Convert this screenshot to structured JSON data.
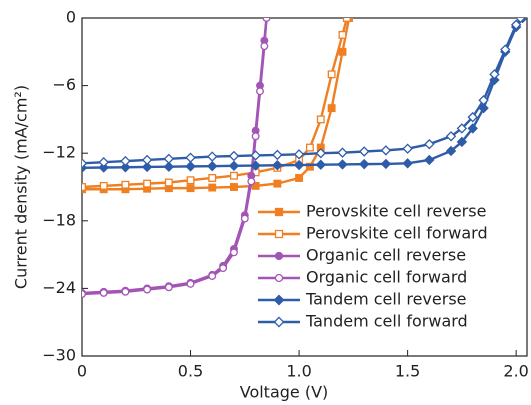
{
  "chart_data": {
    "type": "line",
    "xlabel": "Voltage (V)",
    "ylabel": "Current density (mA/cm²)",
    "xlim": [
      0,
      2.05
    ],
    "ylim": [
      -30,
      0
    ],
    "xticks": [
      0,
      0.5,
      {
        "value": 1,
        "label": "1.0"
      },
      1.5,
      {
        "value": 2,
        "label": "2.0"
      }
    ],
    "yticks": [
      {
        "value": -30,
        "label": "−30"
      },
      {
        "value": -24,
        "label": "−24"
      },
      {
        "value": -18,
        "label": "−18"
      },
      {
        "value": -12,
        "label": "−12"
      },
      {
        "value": -6,
        "label": "−6"
      },
      0
    ],
    "legend": "lower right",
    "series": [
      {
        "name": "Perovskite cell reverse",
        "color": "#f07f22",
        "marker": "square",
        "filled": true,
        "x": [
          0,
          0.1,
          0.2,
          0.3,
          0.4,
          0.5,
          0.6,
          0.7,
          0.8,
          0.9,
          1.0,
          1.05,
          1.1,
          1.15,
          1.2,
          1.23
        ],
        "values": [
          -15.2,
          -15.2,
          -15.2,
          -15.15,
          -15.1,
          -15.1,
          -15.05,
          -15,
          -14.9,
          -14.7,
          -14.2,
          -13.2,
          -11.5,
          -8,
          -3,
          0
        ]
      },
      {
        "name": "Perovskite cell forward",
        "color": "#f07f22",
        "marker": "square",
        "filled": false,
        "x": [
          0,
          0.1,
          0.2,
          0.3,
          0.4,
          0.5,
          0.6,
          0.7,
          0.8,
          0.9,
          1.0,
          1.05,
          1.1,
          1.15,
          1.2,
          1.22
        ],
        "values": [
          -15,
          -14.9,
          -14.8,
          -14.7,
          -14.6,
          -14.4,
          -14.2,
          -14,
          -13.7,
          -13.3,
          -12.6,
          -11.5,
          -9,
          -5,
          -1.5,
          0
        ]
      },
      {
        "name": "Organic cell reverse",
        "color": "#a355b5",
        "marker": "circle",
        "filled": true,
        "x": [
          0,
          0.1,
          0.2,
          0.3,
          0.4,
          0.5,
          0.6,
          0.65,
          0.7,
          0.75,
          0.78,
          0.8,
          0.82,
          0.84,
          0.85
        ],
        "values": [
          -24.4,
          -24.3,
          -24.2,
          -24,
          -23.8,
          -23.5,
          -22.8,
          -22,
          -20.5,
          -17.5,
          -14,
          -10,
          -6,
          -2,
          0
        ]
      },
      {
        "name": "Organic cell forward",
        "color": "#a355b5",
        "marker": "circle",
        "filled": false,
        "x": [
          0,
          0.1,
          0.2,
          0.3,
          0.4,
          0.5,
          0.6,
          0.65,
          0.7,
          0.75,
          0.78,
          0.8,
          0.82,
          0.84,
          0.85
        ],
        "values": [
          -24.5,
          -24.4,
          -24.3,
          -24.1,
          -23.9,
          -23.6,
          -22.9,
          -22.2,
          -20.8,
          -17.8,
          -14.5,
          -10.5,
          -6.5,
          -2.5,
          0
        ]
      },
      {
        "name": "Tandem cell reverse",
        "color": "#2e5ca8",
        "marker": "diamond",
        "filled": true,
        "x": [
          0,
          0.1,
          0.2,
          0.3,
          0.4,
          0.5,
          0.6,
          0.7,
          0.8,
          0.9,
          1.0,
          1.1,
          1.2,
          1.3,
          1.4,
          1.5,
          1.6,
          1.7,
          1.75,
          1.8,
          1.85,
          1.9,
          1.95,
          2.0,
          2.03
        ],
        "values": [
          -13.3,
          -13.27,
          -13.25,
          -13.22,
          -13.2,
          -13.17,
          -13.15,
          -13.12,
          -13.1,
          -13.07,
          -13.05,
          -13.02,
          -13,
          -12.97,
          -12.95,
          -12.9,
          -12.6,
          -11.8,
          -11,
          -9.8,
          -8,
          -5.5,
          -3,
          -0.8,
          0
        ]
      },
      {
        "name": "Tandem cell forward",
        "color": "#2e5ca8",
        "marker": "diamond",
        "filled": false,
        "x": [
          0,
          0.1,
          0.2,
          0.3,
          0.4,
          0.5,
          0.6,
          0.7,
          0.8,
          0.9,
          1.0,
          1.1,
          1.2,
          1.3,
          1.4,
          1.5,
          1.6,
          1.7,
          1.75,
          1.8,
          1.85,
          1.9,
          1.95,
          2.0,
          2.02
        ],
        "values": [
          -12.9,
          -12.8,
          -12.7,
          -12.6,
          -12.5,
          -12.4,
          -12.3,
          -12.25,
          -12.2,
          -12.15,
          -12.1,
          -12,
          -11.95,
          -11.85,
          -11.75,
          -11.6,
          -11.2,
          -10.5,
          -9.8,
          -8.8,
          -7.3,
          -5,
          -2.8,
          -0.6,
          0
        ]
      }
    ]
  }
}
